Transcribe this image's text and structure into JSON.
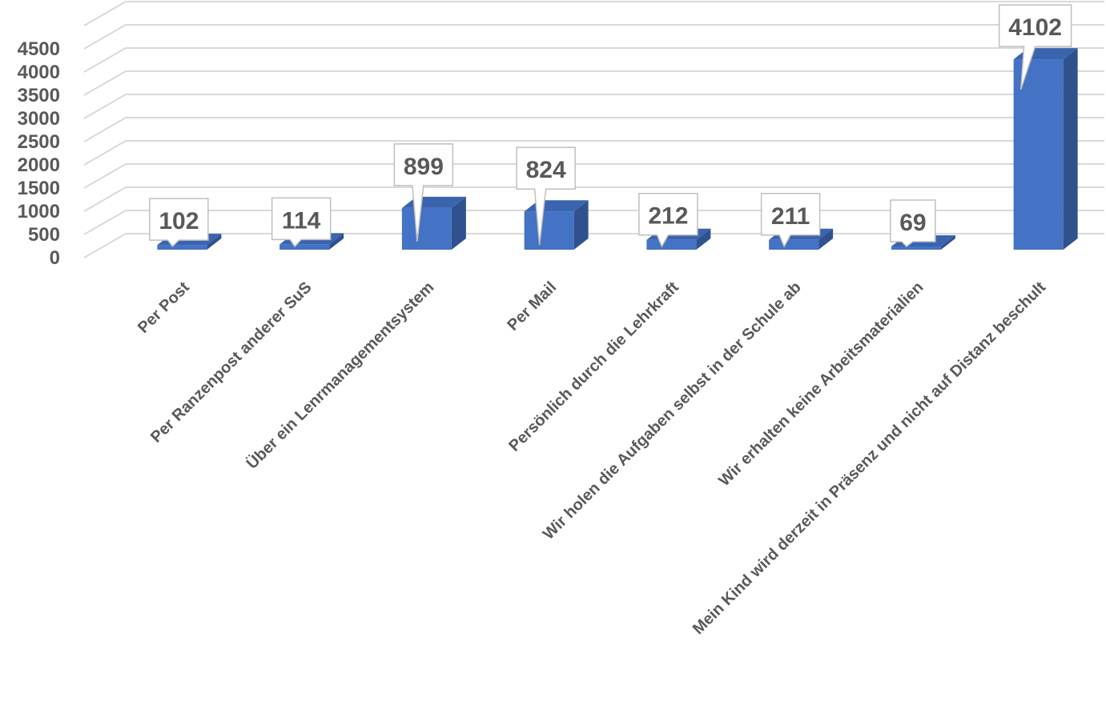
{
  "chart_data": {
    "type": "bar",
    "categories": [
      "Per Post",
      "Per Ranzenpost anderer SuS",
      "Über ein Lenrmanagementsystem",
      "Per Mail",
      "Persönlich durch die Lehrkraft",
      "Wir holen die Aufgaben selbst in der Schule ab",
      "Wir erhalten keine Arbeitsmaterialien",
      "Mein Kind wird derzeit in Präsenz und nicht auf Distanz beschult"
    ],
    "values": [
      102,
      114,
      899,
      824,
      212,
      211,
      69,
      4102
    ],
    "data_labels": [
      "102",
      "114",
      "899",
      "824",
      "212",
      "211",
      "69",
      "4102"
    ],
    "ytick_labels": [
      "0",
      "500",
      "1000",
      "1500",
      "2000",
      "2500",
      "3000",
      "3500",
      "4000",
      "4500"
    ],
    "ylim": [
      0,
      5000
    ],
    "title": "",
    "xlabel": "",
    "ylabel": "",
    "grid": true,
    "legend": "none",
    "style": "3d-column with callout data labels",
    "colors": {
      "bar_front": "#4472C4",
      "bar_side": "#2F528F",
      "bar_top": "#3B64AE",
      "gridline": "#D9D9D9",
      "text": "#595959",
      "callout_border": "#BFBFBF",
      "callout_fill": "#FFFFFF"
    }
  }
}
